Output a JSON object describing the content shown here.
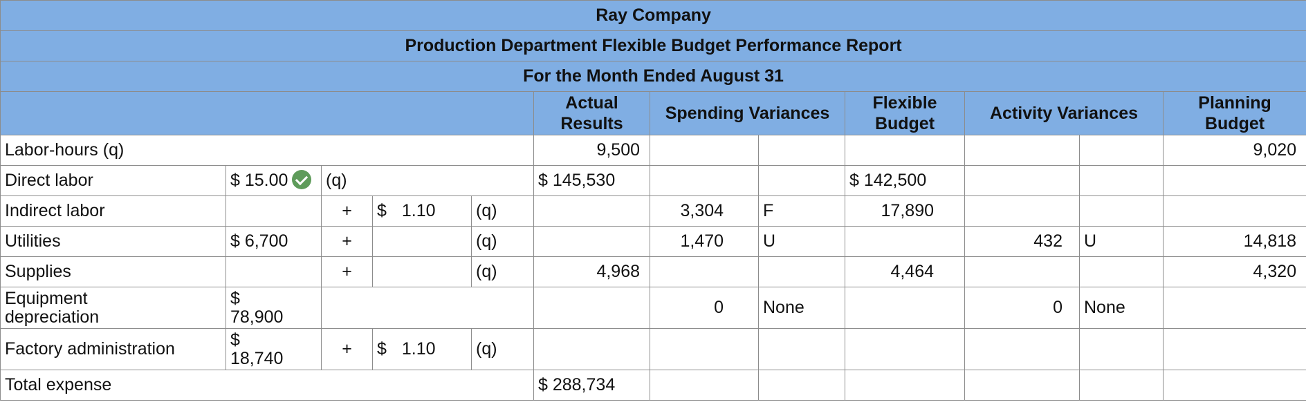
{
  "report": {
    "company": "Ray Company",
    "title": "Production Department Flexible Budget Performance Report",
    "period": "For the Month Ended August 31"
  },
  "columns": {
    "actual": "Actual Results",
    "spending": "Spending Variances",
    "flexible": "Flexible Budget",
    "activity": "Activity Variances",
    "planning": "Planning Budget"
  },
  "rows": {
    "labor_hours": {
      "label": "Labor-hours (q)",
      "actual": "9,500",
      "planning": "9,020"
    },
    "direct_labor": {
      "label": "Direct labor",
      "fixed": "$ 15.00",
      "q": "(q)",
      "actual": "$ 145,530",
      "flexible": "$ 142,500"
    },
    "indirect_labor": {
      "label": "Indirect labor",
      "plus": "+",
      "dollar": "$",
      "rate": "1.10",
      "q": "(q)",
      "spending": "3,304",
      "spending_fu": "F",
      "flexible": "17,890"
    },
    "utilities": {
      "label": "Utilities",
      "fixed": "$ 6,700",
      "plus": "+",
      "q": "(q)",
      "spending": "1,470",
      "spending_fu": "U",
      "activity": "432",
      "activity_fu": "U",
      "planning": "14,818"
    },
    "supplies": {
      "label": "Supplies",
      "plus": "+",
      "q": "(q)",
      "actual": "4,968",
      "flexible": "4,464",
      "planning": "4,320"
    },
    "equipment_depreciation": {
      "label_line1": "Equipment",
      "label_line2": "depreciation",
      "fixed_dollar": "$",
      "fixed_amount": "78,900",
      "spending": "0",
      "spending_fu": "None",
      "activity": "0",
      "activity_fu": "None"
    },
    "factory_administration": {
      "label": "Factory administration",
      "fixed_dollar": "$",
      "fixed_amount": "18,740",
      "plus": "+",
      "dollar": "$",
      "rate": "1.10",
      "q": "(q)"
    },
    "total_expense": {
      "label": "Total expense",
      "actual": "$ 288,734"
    }
  }
}
